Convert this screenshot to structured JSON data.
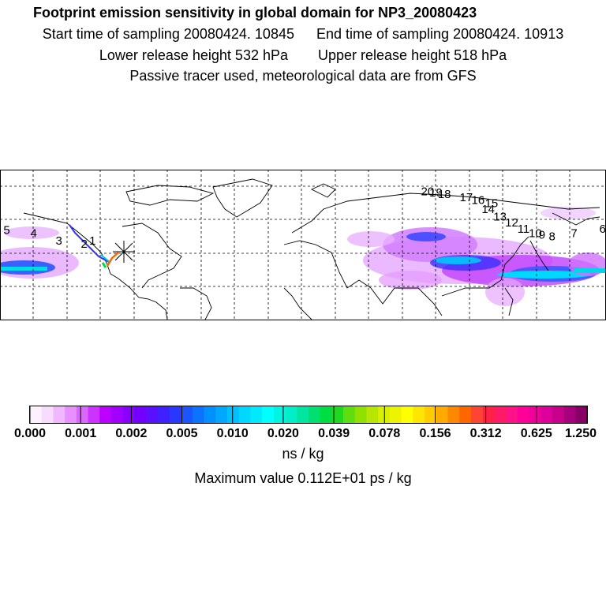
{
  "header": {
    "title": "Footprint emission sensitivity in global domain for NP3_20080423",
    "start_label": "Start time of sampling 20080424. 10845",
    "end_label": "End time of sampling 20080424. 10913",
    "lower_label": "Lower release height  532 hPa",
    "upper_label": "Upper release height  518 hPa",
    "tracer_note": "Passive tracer used, meteorological data are from GFS"
  },
  "chart_data": {
    "type": "heatmap",
    "title": "Footprint emission sensitivity in global domain for NP3_20080423",
    "projection": "lat-lon",
    "lon_range": [
      -180,
      180
    ],
    "lat_range": [
      -20,
      80
    ],
    "grid_step_lon": 30,
    "grid_step_lat": 20,
    "release_point": {
      "lon": -118,
      "lat": 34
    },
    "trajectory": {
      "labels": [
        "1",
        "2",
        "3",
        "4",
        "5",
        "6",
        "7",
        "8",
        "9",
        "10",
        "11",
        "12",
        "13",
        "14",
        "15",
        "16",
        "17",
        "18",
        "19",
        "20"
      ],
      "points": [
        {
          "label": "1",
          "lon": -125,
          "lat": 30
        },
        {
          "label": "2",
          "lon": -130,
          "lat": 28
        },
        {
          "label": "3",
          "lon": -145,
          "lat": 30
        },
        {
          "label": "4",
          "lon": -160,
          "lat": 35
        },
        {
          "label": "5",
          "lon": -176,
          "lat": 37
        },
        {
          "label": "6",
          "lon": 178,
          "lat": 38
        },
        {
          "label": "7",
          "lon": 161,
          "lat": 35
        },
        {
          "label": "8",
          "lon": 148,
          "lat": 33
        },
        {
          "label": "9",
          "lon": 142,
          "lat": 34
        },
        {
          "label": "10",
          "lon": 138,
          "lat": 35
        },
        {
          "label": "11",
          "lon": 131,
          "lat": 38
        },
        {
          "label": "12",
          "lon": 124,
          "lat": 42
        },
        {
          "label": "13",
          "lon": 117,
          "lat": 46
        },
        {
          "label": "14",
          "lon": 110,
          "lat": 51
        },
        {
          "label": "15",
          "lon": 112,
          "lat": 55
        },
        {
          "label": "16",
          "lon": 104,
          "lat": 57
        },
        {
          "label": "17",
          "lon": 97,
          "lat": 59
        },
        {
          "label": "18",
          "lon": 84,
          "lat": 61
        },
        {
          "label": "19",
          "lon": 79,
          "lat": 62
        },
        {
          "label": "20",
          "lon": 74,
          "lat": 63
        }
      ]
    },
    "colorbar": {
      "tick_labels": [
        "0.000",
        "0.001",
        "0.002",
        "0.005",
        "0.010",
        "0.020",
        "0.039",
        "0.078",
        "0.156",
        "0.312",
        "0.625",
        "1.250"
      ],
      "colors": [
        "#fdf0ff",
        "#f8dcff",
        "#f0b8ff",
        "#e890ff",
        "#dd66ff",
        "#cc33ff",
        "#bb00ff",
        "#a100ff",
        "#8800ff",
        "#7300ff",
        "#5a10ff",
        "#4020ff",
        "#2838ff",
        "#1a55ff",
        "#0b73ff",
        "#0090ff",
        "#00a8ff",
        "#00c0ff",
        "#00d8ff",
        "#00eaff",
        "#00ffff",
        "#00f5e0",
        "#00efc8",
        "#00e6a0",
        "#00e070",
        "#00dd40",
        "#20d820",
        "#60dd10",
        "#90e000",
        "#b8e600",
        "#d8f000",
        "#eef400",
        "#ffff00",
        "#ffe600",
        "#ffcc00",
        "#ffaa00",
        "#ff8800",
        "#ff6600",
        "#ff4433",
        "#ff2244",
        "#ff1a66",
        "#ff1188",
        "#ff0099",
        "#f0009a",
        "#dd009a",
        "#c8008c",
        "#a8007c",
        "#880066"
      ]
    },
    "xlabel": "ns / kg",
    "max_value_text": "Maximum value  0.112E+01 ps / kg"
  }
}
